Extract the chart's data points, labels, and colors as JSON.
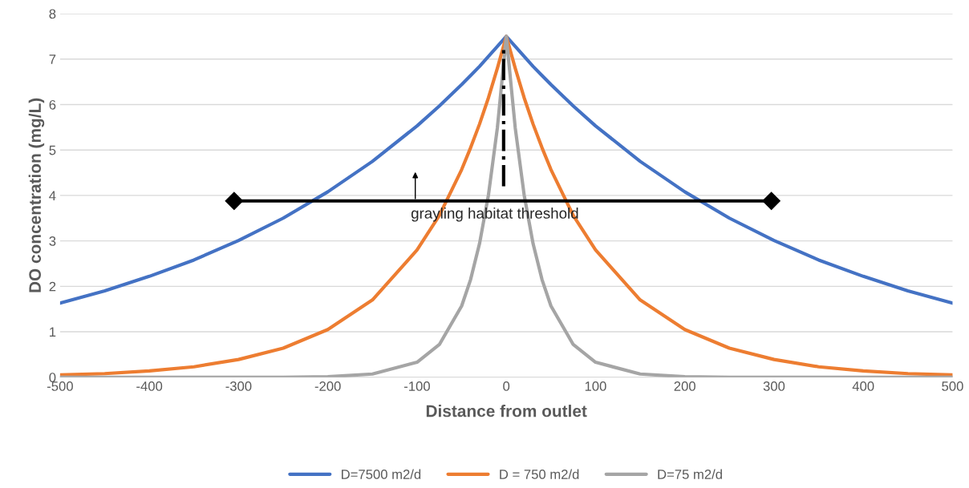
{
  "chart_data": {
    "type": "line",
    "xlabel": "Distance from outlet",
    "ylabel": "DO concentration (mg/L)",
    "x": [
      -500,
      -450,
      -400,
      -350,
      -300,
      -250,
      -200,
      -150,
      -100,
      -75,
      -50,
      -40,
      -30,
      -20,
      -10,
      0,
      10,
      20,
      30,
      40,
      50,
      75,
      100,
      150,
      200,
      250,
      300,
      350,
      400,
      450,
      500
    ],
    "series": [
      {
        "name": "D=7500 m2/d",
        "color": "#4472c4",
        "values": [
          1.63,
          1.9,
          2.22,
          2.58,
          3.01,
          3.5,
          4.08,
          4.75,
          5.53,
          5.97,
          6.44,
          6.64,
          6.84,
          7.06,
          7.28,
          7.5,
          7.28,
          7.06,
          6.84,
          6.64,
          6.44,
          5.97,
          5.53,
          4.75,
          4.08,
          3.5,
          3.01,
          2.58,
          2.22,
          1.9,
          1.63
        ]
      },
      {
        "name": "D = 750 m2/d",
        "color": "#ed7d31",
        "values": [
          0.05,
          0.08,
          0.14,
          0.23,
          0.39,
          0.64,
          1.05,
          1.7,
          2.8,
          3.56,
          4.57,
          5.05,
          5.57,
          6.15,
          6.8,
          7.5,
          6.8,
          6.15,
          5.57,
          5.05,
          4.57,
          3.56,
          2.8,
          1.7,
          1.05,
          0.64,
          0.39,
          0.23,
          0.14,
          0.08,
          0.05
        ]
      },
      {
        "name": "D=75 m2/d",
        "color": "#a5a5a5",
        "values": [
          0,
          0,
          0,
          0,
          0,
          0,
          0.01,
          0.07,
          0.33,
          0.72,
          1.57,
          2.15,
          2.94,
          4.01,
          5.49,
          7.5,
          5.49,
          4.01,
          2.94,
          2.15,
          1.57,
          0.72,
          0.33,
          0.07,
          0.01,
          0,
          0,
          0,
          0,
          0,
          0
        ]
      },
      {
        "color": "#000000",
        "x": [
          -305,
          297
        ],
        "values": [
          3.88,
          3.88
        ],
        "marker": "diamond"
      },
      {
        "color": "#000000",
        "x": [
          -3,
          -3
        ],
        "values": [
          4.2,
          7.2
        ],
        "line_style": "dashed"
      }
    ],
    "annotations": [
      {
        "text": "grayling habitat threshold",
        "x": -102,
        "y": 3.88
      }
    ],
    "xlim": [
      -500,
      500
    ],
    "xticks": [
      -500,
      -400,
      -300,
      -200,
      -100,
      0,
      100,
      200,
      300,
      400,
      500
    ],
    "ylim": [
      0,
      8
    ],
    "yticks": [
      0,
      1,
      2,
      3,
      4,
      5,
      6,
      7,
      8
    ],
    "grid": "y",
    "legend": "bottom",
    "marker": "none",
    "line_style": "solid"
  }
}
